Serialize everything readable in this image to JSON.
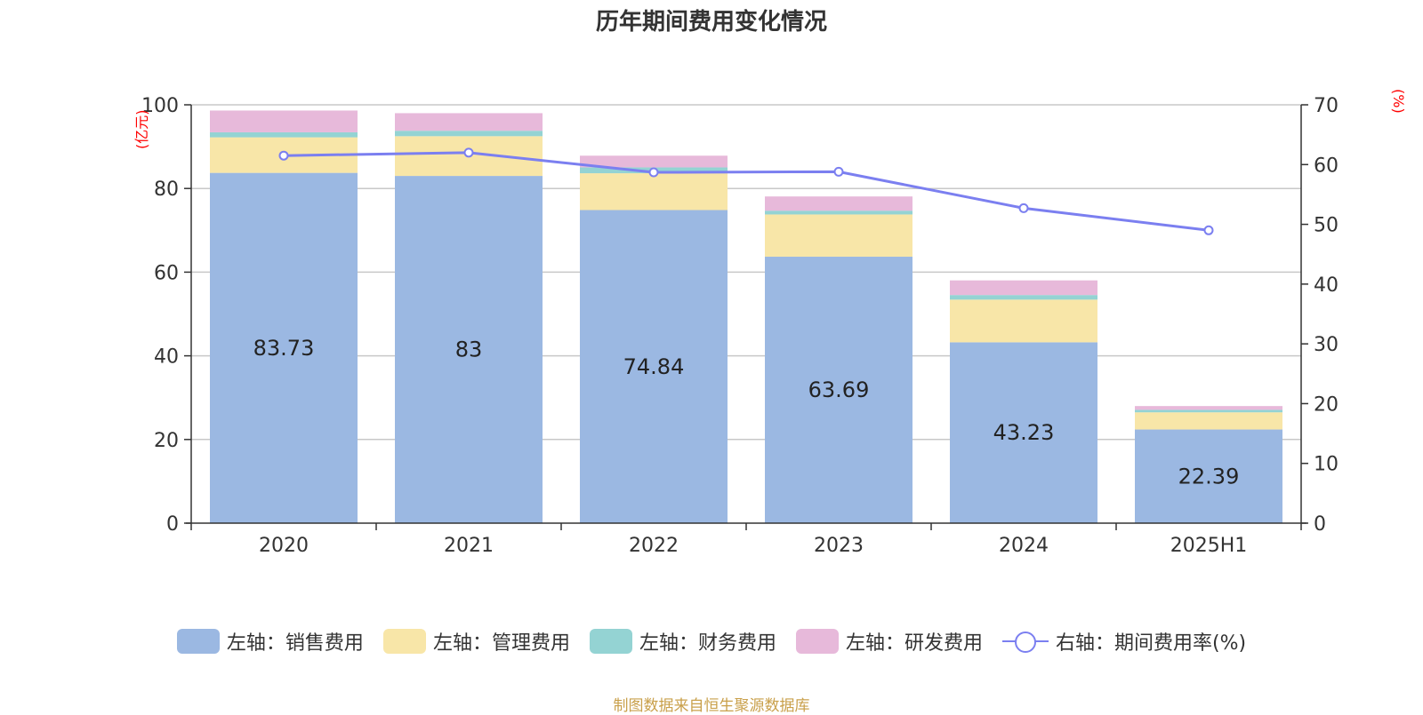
{
  "colors": {
    "sales": "#9bb8e2",
    "admin": "#f8e6a8",
    "finance": "#94d3d3",
    "rd": "#e7b9da",
    "line": "#7b7ff0",
    "unit": "#ff0000",
    "source": "#c9a04b"
  },
  "chart_data": {
    "type": "bar",
    "title": "历年期间费用变化情况",
    "left_unit": "(亿元)",
    "right_unit": "(%)",
    "categories": [
      "2020",
      "2021",
      "2022",
      "2023",
      "2024",
      "2025H1"
    ],
    "stacked": true,
    "ylim_left": [
      0,
      100
    ],
    "ylim_right": [
      0,
      70
    ],
    "left_ticks": [
      0,
      20,
      40,
      60,
      80,
      100
    ],
    "right_ticks": [
      0,
      10,
      20,
      30,
      40,
      50,
      60,
      70
    ],
    "grid": true,
    "legend_position": "bottom",
    "series": [
      {
        "name": "左轴：销售费用",
        "axis": "left",
        "values": [
          83.73,
          83,
          74.84,
          63.69,
          43.23,
          22.39
        ],
        "labels": [
          "83.73",
          "83",
          "74.84",
          "63.69",
          "43.23",
          "22.39"
        ]
      },
      {
        "name": "左轴：管理费用",
        "axis": "left",
        "values": [
          8.5,
          9.5,
          8.8,
          10.1,
          10.2,
          4.1
        ]
      },
      {
        "name": "左轴：财务费用",
        "axis": "left",
        "values": [
          1.2,
          1.3,
          1.4,
          0.9,
          1.1,
          0.6
        ]
      },
      {
        "name": "左轴：研发费用",
        "axis": "left",
        "values": [
          5.2,
          4.2,
          2.8,
          3.4,
          3.5,
          0.9
        ]
      },
      {
        "name": "右轴：期间费用率(%)",
        "axis": "right",
        "type": "line",
        "values": [
          61.5,
          62.0,
          58.7,
          58.8,
          52.7,
          49.0
        ]
      }
    ]
  },
  "source": "制图数据来自恒生聚源数据库"
}
